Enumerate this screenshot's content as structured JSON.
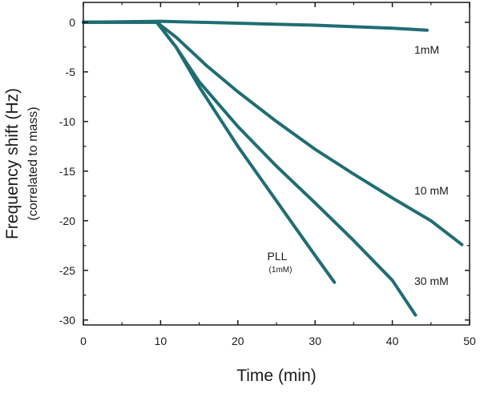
{
  "chart_data": {
    "type": "line",
    "xlabel": "Time (min)",
    "ylabel": "Frequency shift (Hz)",
    "ylabel_sub": "(correlated to mass)",
    "xlim": [
      0,
      50
    ],
    "ylim": [
      -30.5,
      2
    ],
    "x_ticks": [
      0,
      10,
      20,
      30,
      40,
      50
    ],
    "y_ticks": [
      0,
      -5,
      -10,
      -15,
      -20,
      -25,
      -30
    ],
    "grid": false,
    "line_color": "#1f6d73",
    "series": [
      {
        "name": "1mM",
        "points": [
          [
            0,
            0
          ],
          [
            10,
            0.1
          ],
          [
            20,
            -0.1
          ],
          [
            30,
            -0.3
          ],
          [
            40,
            -0.6
          ],
          [
            44.5,
            -0.8
          ]
        ]
      },
      {
        "name": "10 mM",
        "points": [
          [
            0,
            0
          ],
          [
            9.5,
            0
          ],
          [
            12,
            -1.5
          ],
          [
            16,
            -4.4
          ],
          [
            20,
            -7
          ],
          [
            25,
            -10
          ],
          [
            30,
            -12.8
          ],
          [
            35,
            -15.3
          ],
          [
            40,
            -17.7
          ],
          [
            45,
            -20
          ],
          [
            49,
            -22.4
          ]
        ]
      },
      {
        "name": "30 mM",
        "points": [
          [
            0,
            0
          ],
          [
            9.5,
            0
          ],
          [
            12,
            -2.5
          ],
          [
            15,
            -6
          ],
          [
            20,
            -10.5
          ],
          [
            25,
            -14.5
          ],
          [
            30,
            -18.2
          ],
          [
            35,
            -22
          ],
          [
            40,
            -26
          ],
          [
            43,
            -29.5
          ]
        ]
      },
      {
        "name": "PLL",
        "name_sub": "(1mM)",
        "points": [
          [
            0,
            0
          ],
          [
            9.5,
            0
          ],
          [
            12,
            -2.5
          ],
          [
            15,
            -6.5
          ],
          [
            20,
            -12.5
          ],
          [
            25,
            -18
          ],
          [
            30,
            -23.5
          ],
          [
            32.5,
            -26.2
          ]
        ]
      }
    ]
  }
}
